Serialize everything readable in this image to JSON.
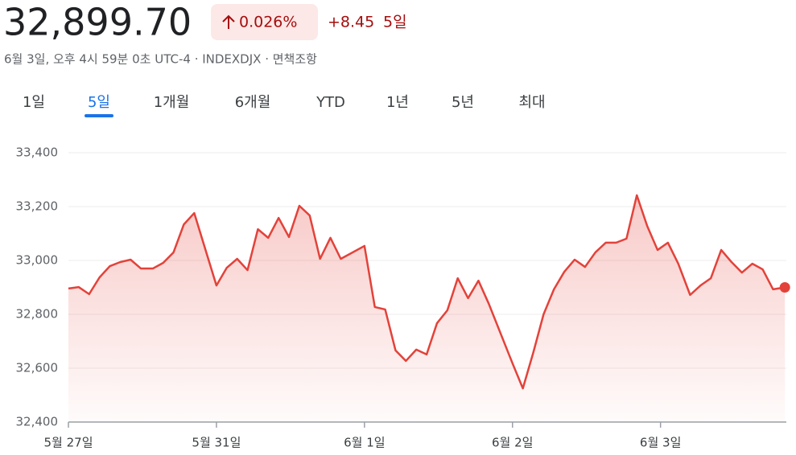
{
  "header": {
    "price": "32,899.70",
    "change_pct": "0.026%",
    "change_abs": "+8.45",
    "change_period": "5일",
    "subtitle": "6월 3일, 오후 4시 59분 0초 UTC-4 · INDEXDJX · 면책조항"
  },
  "tabs": {
    "items": [
      "1일",
      "5일",
      "1개월",
      "6개월",
      "YTD",
      "1년",
      "5년",
      "최대"
    ],
    "active": 1
  },
  "chart_data": {
    "type": "line",
    "x": [
      0,
      0.07,
      0.14,
      0.21,
      0.28,
      0.35,
      0.42,
      0.49,
      0.57,
      0.64,
      0.71,
      0.78,
      0.85,
      1,
      1.07,
      1.14,
      1.21,
      1.28,
      1.35,
      1.42,
      1.49,
      1.56,
      1.63,
      1.7,
      1.77,
      1.84,
      2,
      2.07,
      2.14,
      2.21,
      2.28,
      2.35,
      2.42,
      2.49,
      2.56,
      2.63,
      2.7,
      2.77,
      2.84,
      3,
      3.07,
      3.14,
      3.21,
      3.28,
      3.35,
      3.42,
      3.49,
      3.56,
      3.63,
      3.7,
      3.77,
      3.84,
      3.91,
      3.98,
      4.05,
      4.12,
      4.2,
      4.27,
      4.34,
      4.41,
      4.48,
      4.55,
      4.62,
      4.69,
      4.76,
      4.84
    ],
    "series": [
      {
        "color": "#e3423a",
        "values": [
          32896,
          32901,
          32875,
          32937,
          32979,
          32994,
          33003,
          32970,
          32970,
          32991,
          33030,
          33134,
          33176,
          32907,
          32973,
          33006,
          32964,
          33116,
          33084,
          33158,
          33087,
          33203,
          33167,
          33006,
          33084,
          33006,
          33054,
          32827,
          32818,
          32666,
          32627,
          32669,
          32651,
          32767,
          32815,
          32934,
          32860,
          32925,
          32839,
          32618,
          32525,
          32657,
          32800,
          32893,
          32958,
          33003,
          32976,
          33030,
          33066,
          33066,
          33081,
          33242,
          33128,
          33039,
          33066,
          32988,
          32872,
          32907,
          32934,
          33039,
          32994,
          32955,
          32988,
          32967,
          32893,
          32900
        ]
      }
    ],
    "xlim": [
      0,
      4.85
    ],
    "xticks": [
      {
        "value": 0,
        "label": "5월 27일"
      },
      {
        "value": 1,
        "label": "5월 31일"
      },
      {
        "value": 2,
        "label": "6월 1일"
      },
      {
        "value": 3,
        "label": "6월 2일"
      },
      {
        "value": 4,
        "label": "6월 3일"
      }
    ],
    "ylim": [
      32400,
      33400
    ],
    "yticks": [
      {
        "value": 32400,
        "label": "32,400"
      },
      {
        "value": 32600,
        "label": "32,600"
      },
      {
        "value": 32800,
        "label": "32,800"
      },
      {
        "value": 33000,
        "label": "33,000"
      },
      {
        "value": 33200,
        "label": "33,200"
      },
      {
        "value": 33400,
        "label": "33,400"
      }
    ],
    "grid": true
  }
}
